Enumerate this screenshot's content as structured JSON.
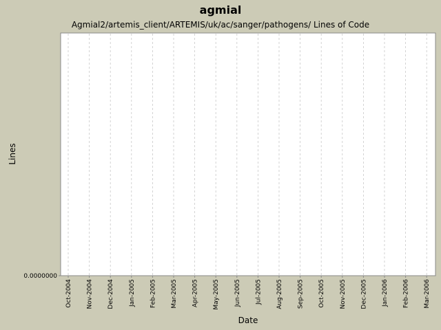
{
  "chart_data": {
    "type": "line",
    "title": "agmial",
    "subtitle": "Agmial2/artemis_client/ARTEMIS/uk/ac/sanger/pathogens/ Lines of Code",
    "xlabel": "Date",
    "ylabel": "Lines",
    "categories": [
      "Oct-2004",
      "Nov-2004",
      "Dec-2004",
      "Jan-2005",
      "Feb-2005",
      "Mar-2005",
      "Apr-2005",
      "May-2005",
      "Jun-2005",
      "Jul-2005",
      "Aug-2005",
      "Sep-2005",
      "Oct-2005",
      "Nov-2005",
      "Dec-2005",
      "Jan-2006",
      "Feb-2006",
      "Mar-2006"
    ],
    "y_tick_labels": [
      "0.0000000"
    ],
    "series": [],
    "grid": true,
    "colors": {
      "background": "#cccbb6",
      "plot_background": "#ffffff",
      "gridline": "#c8c8c8"
    }
  }
}
